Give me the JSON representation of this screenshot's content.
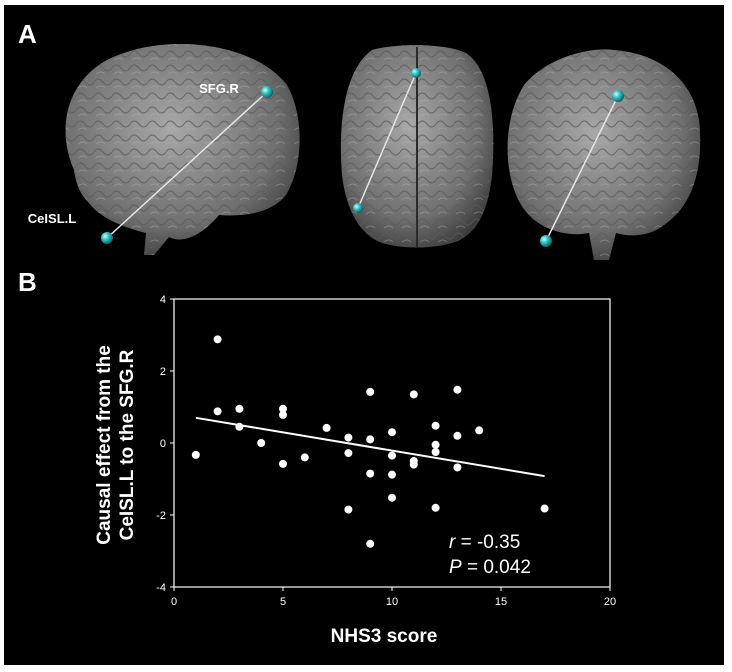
{
  "panels": {
    "a_label": "A",
    "b_label": "B"
  },
  "brain_panel": {
    "nodes": [
      {
        "name": "SFG.R",
        "color": "#2bbfc0"
      },
      {
        "name": "CeISL.L",
        "color": "#2bbfc0"
      }
    ],
    "views": [
      "sagittal",
      "axial",
      "coronal"
    ],
    "colors": {
      "brain": "#8a8a8a",
      "edge": "#e6e6e6"
    }
  },
  "chart_data": {
    "type": "scatter",
    "title": "",
    "xlabel": "NHS3 score",
    "ylabel_lines": [
      "Causal effect from the",
      "CeISL.L to the SFG.R"
    ],
    "xlim": [
      0,
      20
    ],
    "ylim": [
      -4,
      4
    ],
    "xticks": [
      0,
      5,
      10,
      15,
      20
    ],
    "yticks": [
      -4,
      -2,
      0,
      2,
      4
    ],
    "grid": false,
    "points": [
      {
        "x": 1,
        "y": -0.33
      },
      {
        "x": 2,
        "y": 2.88
      },
      {
        "x": 2,
        "y": 0.88
      },
      {
        "x": 3,
        "y": 0.95
      },
      {
        "x": 3,
        "y": 0.45
      },
      {
        "x": 4,
        "y": 0.0
      },
      {
        "x": 5,
        "y": 0.95
      },
      {
        "x": 5,
        "y": 0.78
      },
      {
        "x": 5,
        "y": -0.58
      },
      {
        "x": 6,
        "y": -0.4
      },
      {
        "x": 7,
        "y": 0.42
      },
      {
        "x": 8,
        "y": 0.15
      },
      {
        "x": 8,
        "y": -0.28
      },
      {
        "x": 8,
        "y": -1.85
      },
      {
        "x": 9,
        "y": 1.42
      },
      {
        "x": 9,
        "y": 0.1
      },
      {
        "x": 9,
        "y": -0.85
      },
      {
        "x": 9,
        "y": -2.8
      },
      {
        "x": 10,
        "y": 0.3
      },
      {
        "x": 10,
        "y": -0.35
      },
      {
        "x": 10,
        "y": -0.88
      },
      {
        "x": 10,
        "y": -1.52
      },
      {
        "x": 11,
        "y": 1.35
      },
      {
        "x": 11,
        "y": -0.5
      },
      {
        "x": 11,
        "y": -0.6
      },
      {
        "x": 12,
        "y": 0.48
      },
      {
        "x": 12,
        "y": -0.05
      },
      {
        "x": 12,
        "y": -0.25
      },
      {
        "x": 12,
        "y": -1.8
      },
      {
        "x": 13,
        "y": 1.48
      },
      {
        "x": 13,
        "y": 0.2
      },
      {
        "x": 13,
        "y": -0.68
      },
      {
        "x": 14,
        "y": 0.35
      },
      {
        "x": 17,
        "y": -1.82
      }
    ],
    "fit_line": {
      "x": [
        1,
        17
      ],
      "y": [
        0.7,
        -0.92
      ]
    },
    "stats": {
      "r_symbol": "r",
      "r_text": " = -0.35",
      "p_symbol": "P",
      "p_text": " = 0.042"
    },
    "colors": {
      "points": "#ffffff",
      "axes": "#ffffff",
      "fit": "#ffffff",
      "background": "#000000"
    }
  }
}
